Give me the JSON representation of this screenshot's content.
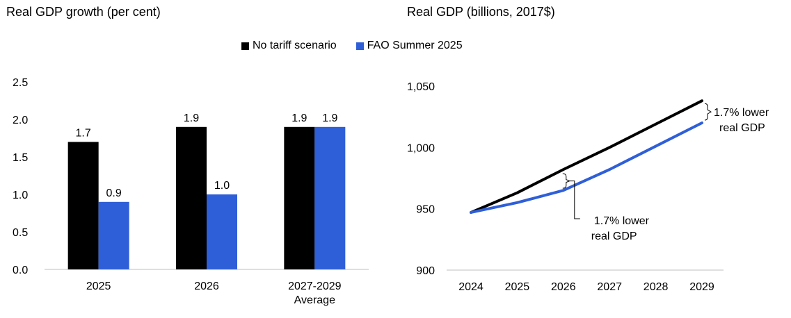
{
  "chart_data": [
    {
      "type": "bar",
      "title": "Real GDP growth (per cent)",
      "categories": [
        [
          "2025"
        ],
        [
          "2026"
        ],
        [
          "2027-2029",
          "Average"
        ]
      ],
      "series": [
        {
          "name": "No tariff scenario",
          "color": "#000000",
          "values": [
            1.7,
            1.9,
            1.9
          ]
        },
        {
          "name": "FAO Summer 2025",
          "color": "#2f5fd8",
          "values": [
            0.9,
            1.0,
            1.9
          ]
        }
      ],
      "data_labels": [
        [
          "1.7",
          "1.9",
          "1.9"
        ],
        [
          "0.9",
          "1.0",
          "1.9"
        ]
      ],
      "ylim": [
        0,
        2.5
      ],
      "yticks": [
        "0.0",
        "0.5",
        "1.0",
        "1.5",
        "2.0",
        "2.5"
      ],
      "grid": false
    },
    {
      "type": "line",
      "title": "Real GDP (billions, 2017$)",
      "x": [
        "2024",
        "2025",
        "2026",
        "2027",
        "2028",
        "2029"
      ],
      "series": [
        {
          "name": "No tariff scenario",
          "color": "#000000",
          "values": [
            947,
            963,
            982,
            1000,
            1019,
            1038
          ]
        },
        {
          "name": "FAO Summer 2025",
          "color": "#2f5fd8",
          "values": [
            947,
            955,
            965,
            982,
            1001,
            1020
          ]
        }
      ],
      "ylim": [
        900,
        1050
      ],
      "yticks": [
        "900",
        "950",
        "1,000",
        "1,050"
      ],
      "grid": false,
      "annotations": [
        {
          "lines": [
            "1.7% lower",
            "real GDP"
          ],
          "at_x": "2026"
        },
        {
          "lines": [
            "1.7% lower",
            "real GDP"
          ],
          "at_x": "2029"
        }
      ]
    }
  ],
  "legend": {
    "items": [
      {
        "label": "No tariff scenario",
        "color": "#000000"
      },
      {
        "label": "FAO Summer 2025",
        "color": "#2f5fd8"
      }
    ]
  }
}
